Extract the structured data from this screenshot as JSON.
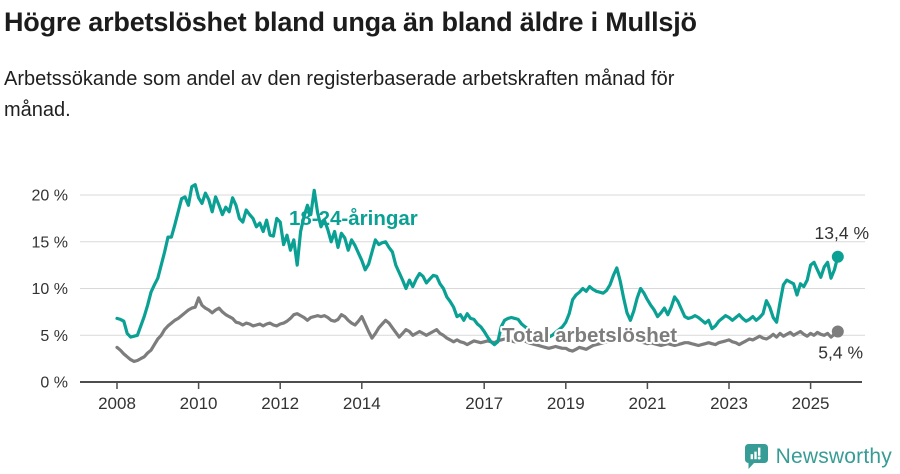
{
  "title": "Högre arbetslöshet bland unga än bland äldre i Mullsjö",
  "subtitle": {
    "line1": "Arbetssökande som andel av den registerbaserade arbetskraften månad för",
    "line2": "månad."
  },
  "branding": {
    "wordmark": "Newsworthy",
    "logo_icon": "speech-bubble-bar-chart",
    "brand_color": "#379c95"
  },
  "colors": {
    "youth_line": "#0aa094",
    "total_line": "#7d7d7d",
    "axis": "#4d4d4d",
    "gridline": "#d9d9d9",
    "tick_text": "#333333",
    "value_label_text": "#333333"
  },
  "chart_data": {
    "type": "line",
    "title": "Högre arbetslöshet bland unga än bland äldre i Mullsjö",
    "subtitle": "Arbetssökande som andel av den registerbaserade arbetskraften månad för månad.",
    "x_unit": "monthly from January 2008 to September 2025",
    "x_start_year": 2008,
    "points_per_year": 12,
    "x_tick_years": [
      2008,
      2010,
      2012,
      2014,
      2017,
      2019,
      2021,
      2023,
      2025
    ],
    "x_tick_labels": [
      "2008",
      "2010",
      "2012",
      "2014",
      "2017",
      "2019",
      "2021",
      "2023",
      "2025"
    ],
    "y_ticks": [
      0,
      5,
      10,
      15,
      20
    ],
    "y_tick_labels": [
      "0 %",
      "5 %",
      "10 %",
      "15 %",
      "20 %"
    ],
    "ylim": [
      0,
      21.5
    ],
    "grid": "horizontal",
    "legend_position": "inline-labels",
    "series": [
      {
        "name": "Total arbetslöshet",
        "color": "#7d7d7d",
        "end_label": "5,4 %",
        "end_value": 5.4,
        "values": [
          3.7,
          3.4,
          3.0,
          2.7,
          2.4,
          2.2,
          2.3,
          2.5,
          2.7,
          3.1,
          3.4,
          4.0,
          4.6,
          5.0,
          5.6,
          6.0,
          6.3,
          6.6,
          6.8,
          7.1,
          7.4,
          7.7,
          7.9,
          8.0,
          9.0,
          8.2,
          7.9,
          7.7,
          7.4,
          7.7,
          7.9,
          7.5,
          7.2,
          7.0,
          6.8,
          6.4,
          6.3,
          6.1,
          6.3,
          6.2,
          6.0,
          6.1,
          6.2,
          6.0,
          6.2,
          6.3,
          6.1,
          6.0,
          6.2,
          6.3,
          6.5,
          6.8,
          7.2,
          7.3,
          7.1,
          6.9,
          6.6,
          6.9,
          7.0,
          7.1,
          7.0,
          7.1,
          6.9,
          6.6,
          6.5,
          6.7,
          7.2,
          7.0,
          6.6,
          6.3,
          6.1,
          6.5,
          7.0,
          6.2,
          5.4,
          4.7,
          5.2,
          5.8,
          6.2,
          6.6,
          6.3,
          5.8,
          5.3,
          4.8,
          5.2,
          5.6,
          5.4,
          5.0,
          5.2,
          5.4,
          5.2,
          5.0,
          5.2,
          5.4,
          5.6,
          5.2,
          5.0,
          4.7,
          4.5,
          4.3,
          4.5,
          4.3,
          4.2,
          4.0,
          4.2,
          4.4,
          4.3,
          4.2,
          4.3,
          4.4,
          4.3,
          4.2,
          4.4,
          4.5,
          4.6,
          4.5,
          4.4,
          4.3,
          4.4,
          4.5,
          4.4,
          4.2,
          4.1,
          4.0,
          3.9,
          3.8,
          3.7,
          3.6,
          3.7,
          3.8,
          3.7,
          3.6,
          3.6,
          3.4,
          3.3,
          3.5,
          3.7,
          3.6,
          3.5,
          3.7,
          3.9,
          4.0,
          4.1,
          4.2,
          4.3,
          4.4,
          4.6,
          4.8,
          4.7,
          4.6,
          4.5,
          4.4,
          4.5,
          4.4,
          4.3,
          4.2,
          4.1,
          4.2,
          4.1,
          4.0,
          3.9,
          4.0,
          4.1,
          4.0,
          3.9,
          4.0,
          4.1,
          4.2,
          4.2,
          4.1,
          4.0,
          3.9,
          4.0,
          4.1,
          4.2,
          4.1,
          4.0,
          4.2,
          4.3,
          4.4,
          4.5,
          4.3,
          4.2,
          4.0,
          4.2,
          4.4,
          4.6,
          4.5,
          4.7,
          4.9,
          4.7,
          4.6,
          4.8,
          5.1,
          4.8,
          5.2,
          4.9,
          5.1,
          5.3,
          5.0,
          5.2,
          5.4,
          5.1,
          4.9,
          5.2,
          5.0,
          5.3,
          5.1,
          5.0,
          5.2,
          4.8,
          5.1,
          5.4
        ]
      },
      {
        "name": "18-24-åringar",
        "color": "#0aa094",
        "end_label": "13,4 %",
        "end_value": 13.4,
        "values": [
          6.8,
          6.7,
          6.5,
          5.2,
          4.8,
          4.9,
          5.0,
          6.0,
          7.0,
          8.2,
          9.6,
          10.4,
          11.1,
          12.5,
          13.9,
          15.5,
          15.5,
          16.8,
          18.2,
          19.6,
          19.8,
          18.9,
          20.9,
          21.1,
          19.7,
          19.1,
          20.2,
          19.5,
          18.2,
          19.8,
          18.9,
          17.9,
          18.7,
          18.2,
          19.7,
          18.9,
          17.5,
          17.1,
          18.4,
          17.9,
          17.5,
          16.6,
          17.0,
          16.1,
          17.3,
          15.7,
          15.6,
          17.5,
          17.1,
          14.7,
          15.7,
          14.1,
          15.2,
          12.5,
          16.1,
          17.7,
          18.9,
          17.9,
          20.5,
          18.1,
          16.6,
          17.3,
          16.3,
          15.0,
          16.1,
          14.4,
          15.9,
          15.4,
          14.1,
          15.2,
          14.6,
          13.8,
          13.0,
          12.0,
          12.6,
          13.9,
          15.2,
          14.7,
          14.9,
          15.0,
          14.4,
          13.9,
          12.5,
          11.7,
          10.9,
          10.0,
          10.9,
          10.2,
          11.0,
          11.6,
          11.3,
          10.6,
          11.0,
          11.4,
          11.3,
          10.5,
          10.0,
          9.1,
          8.6,
          8.0,
          7.0,
          7.2,
          6.6,
          7.3,
          6.8,
          6.7,
          6.2,
          5.9,
          5.4,
          4.8,
          4.3,
          4.0,
          4.3,
          5.9,
          6.6,
          6.8,
          6.9,
          6.8,
          6.7,
          6.2,
          5.9,
          5.7,
          5.5,
          5.3,
          5.2,
          5.0,
          4.9,
          4.8,
          5.0,
          5.3,
          5.6,
          5.9,
          6.4,
          7.3,
          8.8,
          9.3,
          9.6,
          10.0,
          9.7,
          10.2,
          9.9,
          9.7,
          9.6,
          9.5,
          9.8,
          10.4,
          11.4,
          12.2,
          10.8,
          9.0,
          7.4,
          6.6,
          7.6,
          9.0,
          10.0,
          9.5,
          8.8,
          8.2,
          7.7,
          7.0,
          7.4,
          7.9,
          7.2,
          8.0,
          9.1,
          8.6,
          7.8,
          7.0,
          6.8,
          6.9,
          7.1,
          6.9,
          6.6,
          6.3,
          6.6,
          5.7,
          6.0,
          6.5,
          6.8,
          7.1,
          6.9,
          6.6,
          6.9,
          7.2,
          6.8,
          6.5,
          6.7,
          7.0,
          6.6,
          6.9,
          7.3,
          8.7,
          8.0,
          6.9,
          6.4,
          8.5,
          10.4,
          10.9,
          10.7,
          10.5,
          9.3,
          10.5,
          10.2,
          10.9,
          12.5,
          12.8,
          12.0,
          11.2,
          12.3,
          12.8,
          11.1,
          12.0,
          13.4
        ]
      }
    ]
  }
}
